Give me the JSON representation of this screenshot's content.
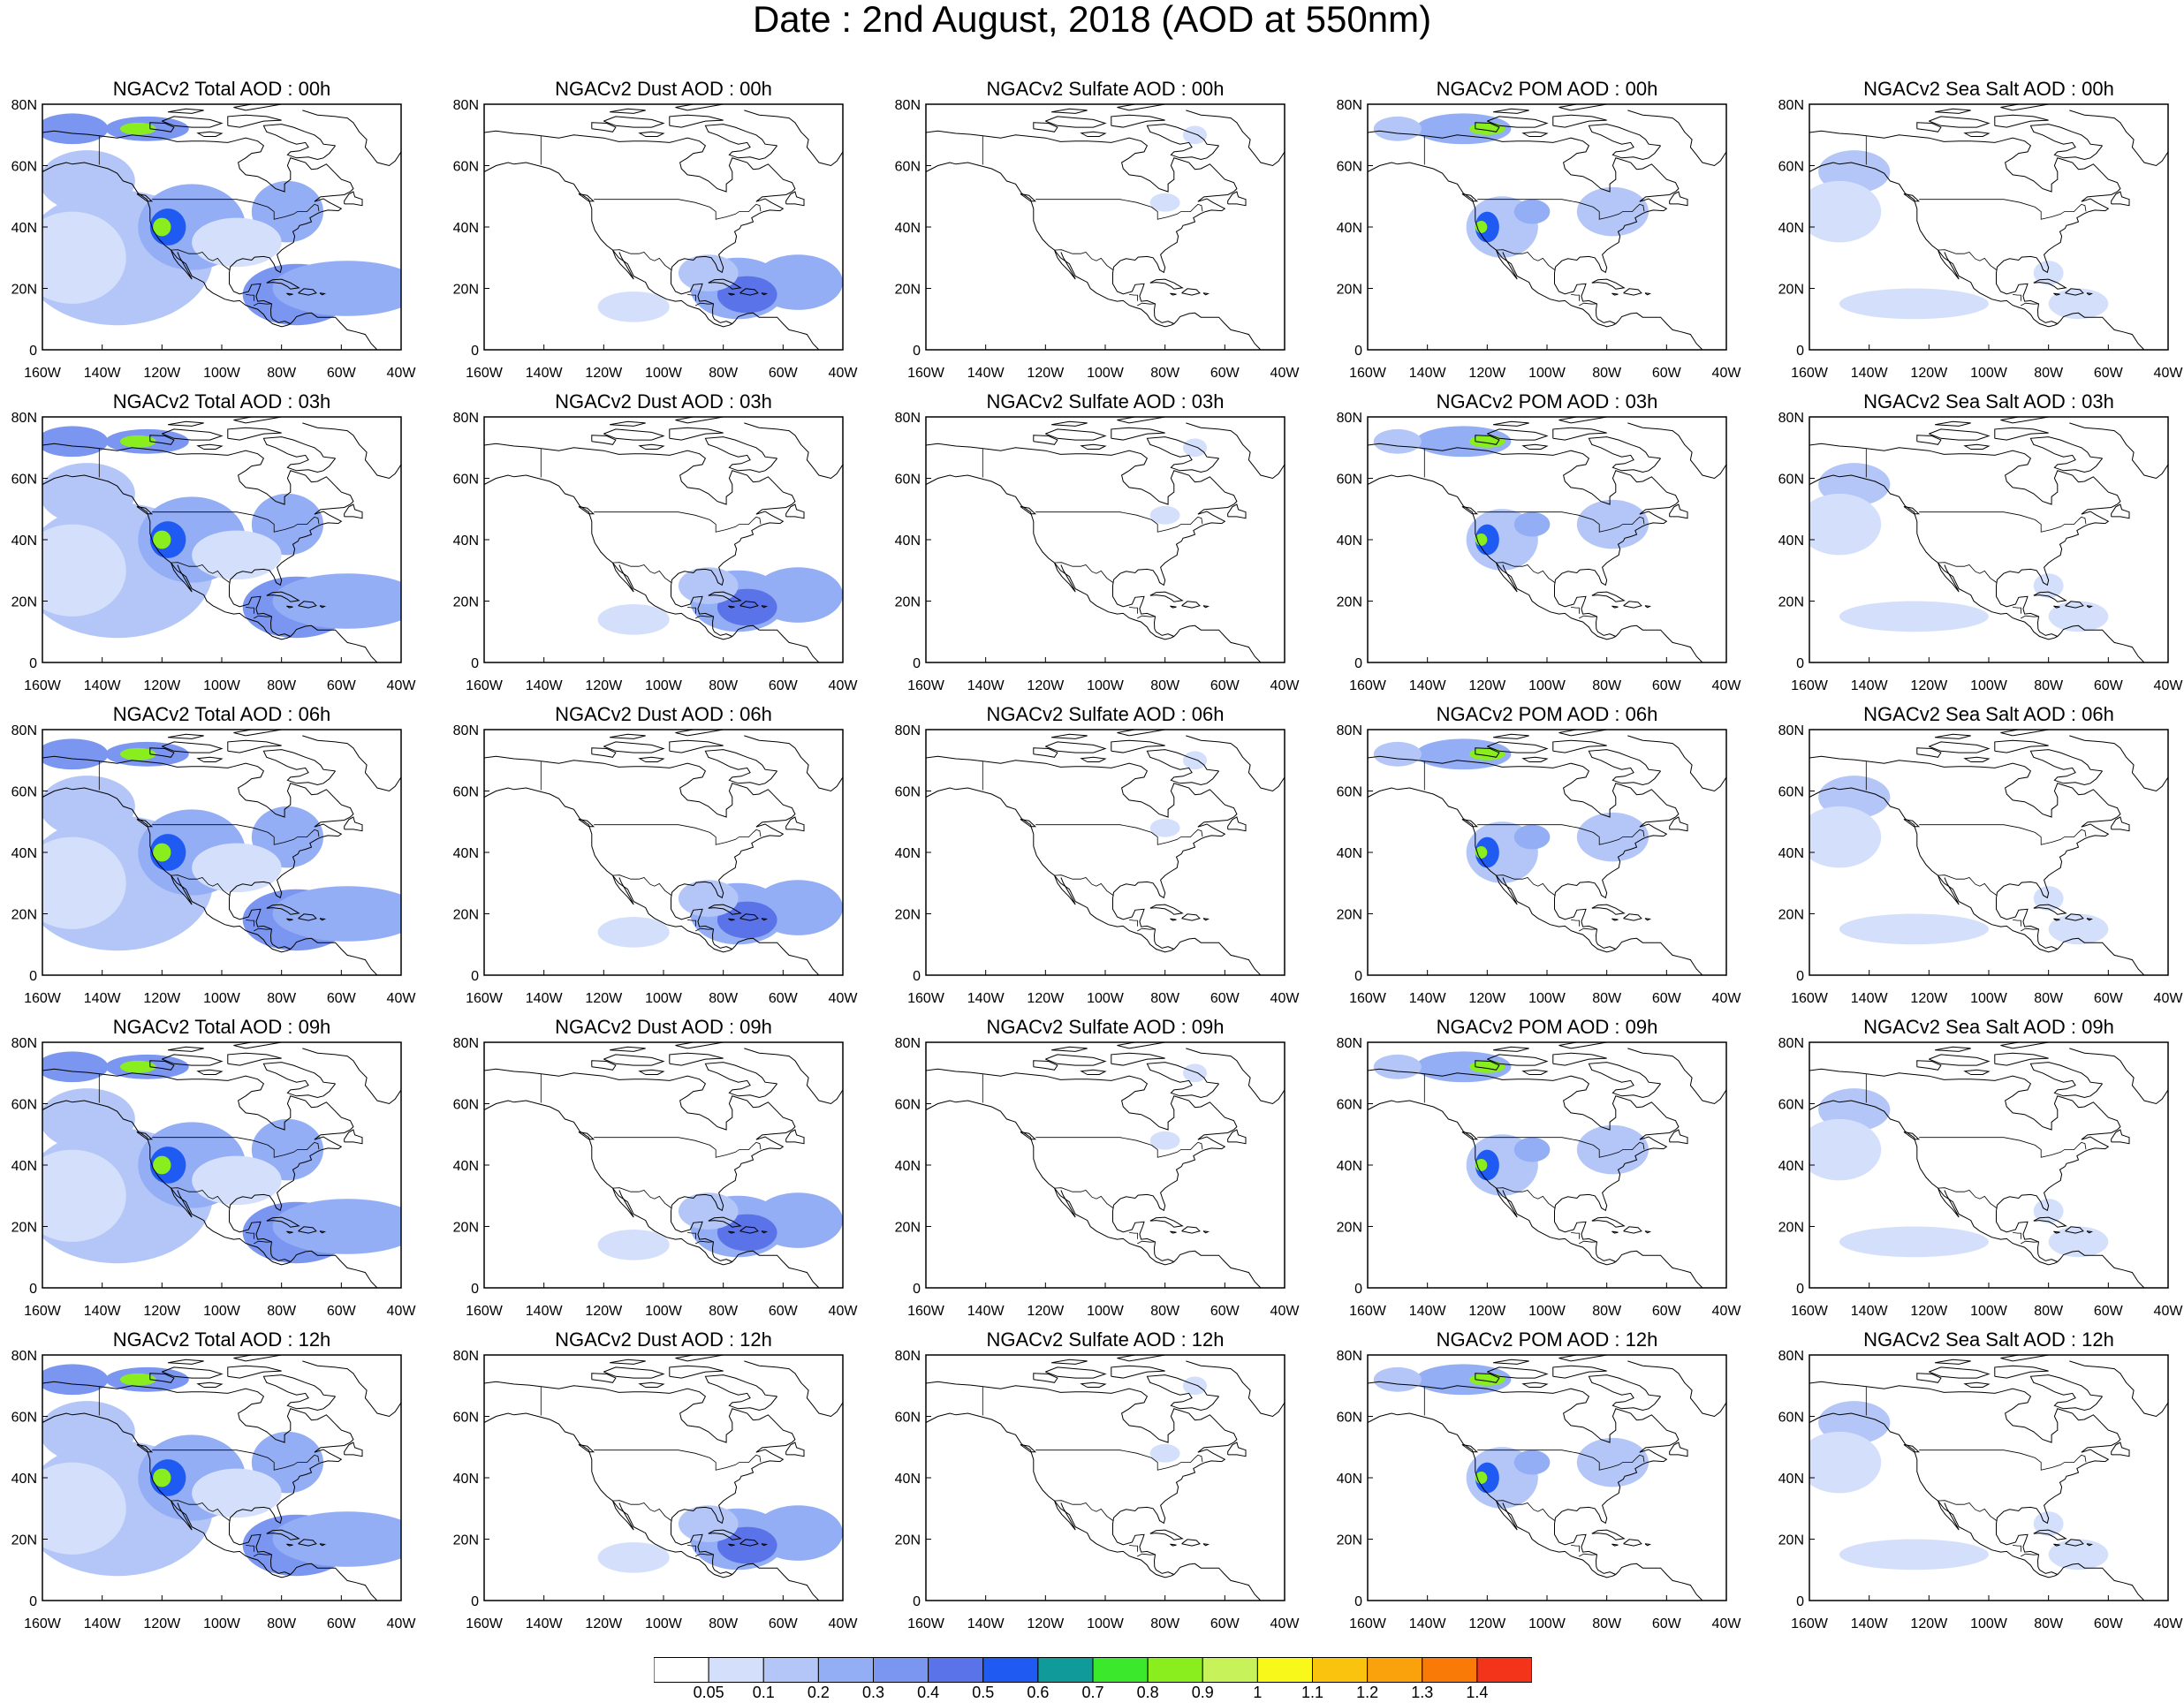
{
  "title": "Date : 2nd August, 2018 (AOD at 550nm)",
  "rows": [
    "00h",
    "03h",
    "06h",
    "09h",
    "12h"
  ],
  "panels": [
    [
      "NGACv2 Total AOD : 00h",
      "NGACv2 Dust AOD : 00h",
      "NGACv2 Sulfate AOD : 00h",
      "NGACv2 POM AOD : 00h",
      "NGACv2 Sea Salt AOD : 00h"
    ],
    [
      "NGACv2 Total AOD : 03h",
      "NGACv2 Dust AOD : 03h",
      "NGACv2 Sulfate AOD : 03h",
      "NGACv2 POM AOD : 03h",
      "NGACv2 Sea Salt AOD : 03h"
    ],
    [
      "NGACv2 Total AOD : 06h",
      "NGACv2 Dust AOD : 06h",
      "NGACv2 Sulfate AOD : 06h",
      "NGACv2 POM AOD : 06h",
      "NGACv2 Sea Salt AOD : 06h"
    ],
    [
      "NGACv2 Total AOD : 09h",
      "NGACv2 Dust AOD : 09h",
      "NGACv2 Sulfate AOD : 09h",
      "NGACv2 POM AOD : 09h",
      "NGACv2 Sea Salt  AOD : 09h"
    ],
    [
      "NGACv2 Total AOD  : 12h",
      "NGACv2 Dust AOD : 12h",
      "NGACv2 Sulfate AOD : 12h",
      "NGACv2 POM  AOD : 12h",
      "NGACv2 Sea Salt  AOD : 12h"
    ]
  ],
  "lat_ticks": [
    "0",
    "20N",
    "40N",
    "60N",
    "80N"
  ],
  "lon_ticks": [
    "160W",
    "140W",
    "120W",
    "100W",
    "80W",
    "60W",
    "40W"
  ],
  "colorbar": {
    "labels": [
      "0.05",
      "0.1",
      "0.2",
      "0.3",
      "0.4",
      "0.5",
      "0.6",
      "0.7",
      "0.8",
      "0.9",
      "1",
      "1.1",
      "1.2",
      "1.3",
      "1.4"
    ],
    "colors": [
      "#ffffff",
      "#d4e0fb",
      "#b3c6f7",
      "#94aef5",
      "#7b96f0",
      "#5b73e8",
      "#1f5bf2",
      "#109a9a",
      "#3ce82c",
      "#8aee1e",
      "#c8f25a",
      "#f8f81a",
      "#fac40e",
      "#faa20c",
      "#fa7a08",
      "#f4341a"
    ]
  }
}
